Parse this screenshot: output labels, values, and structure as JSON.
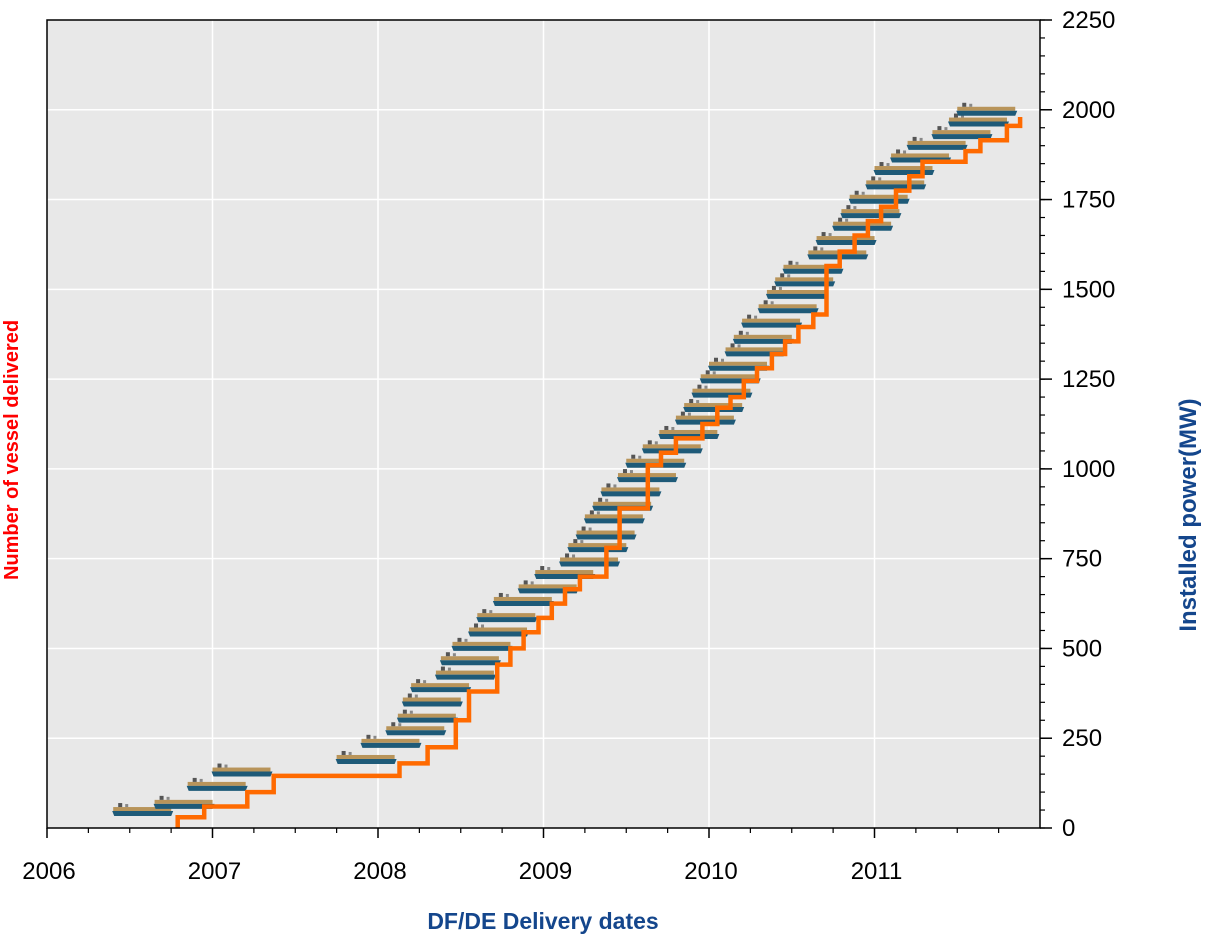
{
  "chart_data": {
    "type": "line",
    "xlabel": "DF/DE Delivery dates",
    "ylabel_left": "Number of vessel delivered",
    "ylabel_right": "Installed power(MW)",
    "xlim": [
      2006.0,
      2012.0
    ],
    "ylim": [
      0,
      2250
    ],
    "x_ticks": [
      "2006",
      "2007",
      "2008",
      "2009",
      "2010",
      "2011"
    ],
    "y_ticks": [
      "0",
      "250",
      "500",
      "750",
      "1000",
      "1250",
      "1500",
      "1750",
      "2000",
      "2250"
    ],
    "grid": true,
    "colors": {
      "series": "#ff6a00",
      "left_title": "#ff0000",
      "right_title": "#14468c",
      "plot_bg": "#e8e8e8",
      "grid": "#ffffff",
      "ship_hull": "#1e5a78",
      "ship_deck": "#b8945a"
    },
    "series": [
      {
        "name": "",
        "step": true,
        "points": [
          [
            2006.79,
            0
          ],
          [
            2006.79,
            30
          ],
          [
            2006.95,
            30
          ],
          [
            2006.95,
            60
          ],
          [
            2007.21,
            60
          ],
          [
            2007.21,
            100
          ],
          [
            2007.37,
            100
          ],
          [
            2007.37,
            145
          ],
          [
            2008.13,
            145
          ],
          [
            2008.13,
            180
          ],
          [
            2008.3,
            180
          ],
          [
            2008.3,
            225
          ],
          [
            2008.47,
            225
          ],
          [
            2008.47,
            300
          ],
          [
            2008.55,
            300
          ],
          [
            2008.55,
            380
          ],
          [
            2008.72,
            380
          ],
          [
            2008.72,
            455
          ],
          [
            2008.8,
            455
          ],
          [
            2008.8,
            500
          ],
          [
            2008.88,
            500
          ],
          [
            2008.88,
            545
          ],
          [
            2008.97,
            545
          ],
          [
            2008.97,
            585
          ],
          [
            2009.05,
            585
          ],
          [
            2009.05,
            625
          ],
          [
            2009.13,
            625
          ],
          [
            2009.13,
            665
          ],
          [
            2009.22,
            665
          ],
          [
            2009.22,
            700
          ],
          [
            2009.38,
            700
          ],
          [
            2009.38,
            780
          ],
          [
            2009.46,
            780
          ],
          [
            2009.46,
            890
          ],
          [
            2009.63,
            890
          ],
          [
            2009.63,
            1010
          ],
          [
            2009.71,
            1010
          ],
          [
            2009.71,
            1045
          ],
          [
            2009.8,
            1045
          ],
          [
            2009.8,
            1085
          ],
          [
            2009.96,
            1085
          ],
          [
            2009.96,
            1125
          ],
          [
            2010.05,
            1125
          ],
          [
            2010.05,
            1170
          ],
          [
            2010.13,
            1170
          ],
          [
            2010.13,
            1200
          ],
          [
            2010.21,
            1200
          ],
          [
            2010.21,
            1245
          ],
          [
            2010.29,
            1245
          ],
          [
            2010.29,
            1280
          ],
          [
            2010.38,
            1280
          ],
          [
            2010.38,
            1320
          ],
          [
            2010.46,
            1320
          ],
          [
            2010.46,
            1355
          ],
          [
            2010.54,
            1355
          ],
          [
            2010.54,
            1395
          ],
          [
            2010.63,
            1395
          ],
          [
            2010.63,
            1430
          ],
          [
            2010.71,
            1430
          ],
          [
            2010.71,
            1565
          ],
          [
            2010.79,
            1565
          ],
          [
            2010.79,
            1605
          ],
          [
            2010.88,
            1605
          ],
          [
            2010.88,
            1650
          ],
          [
            2010.96,
            1650
          ],
          [
            2010.96,
            1690
          ],
          [
            2011.04,
            1690
          ],
          [
            2011.04,
            1730
          ],
          [
            2011.13,
            1730
          ],
          [
            2011.13,
            1775
          ],
          [
            2011.21,
            1775
          ],
          [
            2011.21,
            1815
          ],
          [
            2011.29,
            1815
          ],
          [
            2011.29,
            1855
          ],
          [
            2011.55,
            1855
          ],
          [
            2011.55,
            1885
          ],
          [
            2011.64,
            1885
          ],
          [
            2011.64,
            1915
          ],
          [
            2011.8,
            1915
          ],
          [
            2011.8,
            1955
          ],
          [
            2011.88,
            1955
          ],
          [
            2011.88,
            1980
          ]
        ]
      }
    ],
    "vessel_markers": [
      [
        2006.4,
        50
      ],
      [
        2006.65,
        70
      ],
      [
        2006.85,
        120
      ],
      [
        2007.0,
        160
      ],
      [
        2007.75,
        195
      ],
      [
        2007.9,
        240
      ],
      [
        2008.05,
        275
      ],
      [
        2008.12,
        310
      ],
      [
        2008.15,
        355
      ],
      [
        2008.2,
        395
      ],
      [
        2008.35,
        430
      ],
      [
        2008.38,
        470
      ],
      [
        2008.45,
        510
      ],
      [
        2008.55,
        550
      ],
      [
        2008.6,
        590
      ],
      [
        2008.7,
        635
      ],
      [
        2008.85,
        670
      ],
      [
        2008.95,
        710
      ],
      [
        2009.1,
        745
      ],
      [
        2009.15,
        785
      ],
      [
        2009.2,
        820
      ],
      [
        2009.25,
        865
      ],
      [
        2009.3,
        900
      ],
      [
        2009.35,
        940
      ],
      [
        2009.45,
        980
      ],
      [
        2009.5,
        1020
      ],
      [
        2009.6,
        1060
      ],
      [
        2009.7,
        1100
      ],
      [
        2009.8,
        1140
      ],
      [
        2009.85,
        1175
      ],
      [
        2009.9,
        1215
      ],
      [
        2009.95,
        1255
      ],
      [
        2010.0,
        1290
      ],
      [
        2010.1,
        1330
      ],
      [
        2010.15,
        1365
      ],
      [
        2010.2,
        1410
      ],
      [
        2010.3,
        1450
      ],
      [
        2010.35,
        1490
      ],
      [
        2010.4,
        1525
      ],
      [
        2010.45,
        1560
      ],
      [
        2010.6,
        1600
      ],
      [
        2010.65,
        1640
      ],
      [
        2010.75,
        1680
      ],
      [
        2010.8,
        1715
      ],
      [
        2010.85,
        1755
      ],
      [
        2010.95,
        1795
      ],
      [
        2011.0,
        1835
      ],
      [
        2011.1,
        1870
      ],
      [
        2011.2,
        1905
      ],
      [
        2011.35,
        1935
      ],
      [
        2011.45,
        1970
      ],
      [
        2011.5,
        2000
      ]
    ]
  }
}
